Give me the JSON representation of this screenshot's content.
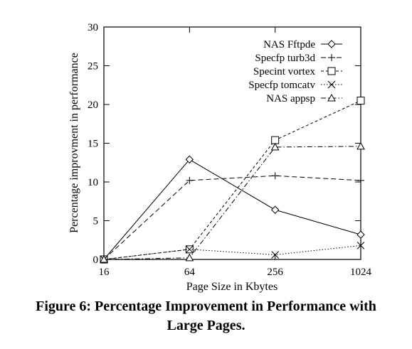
{
  "chart_data": {
    "type": "line",
    "title": "",
    "xlabel": "Page Size in Kbytes",
    "ylabel": "Percentage improvment in performance",
    "categories": [
      "16",
      "64",
      "256",
      "1024"
    ],
    "ylim": [
      0,
      30
    ],
    "yticks": [
      0,
      5,
      10,
      15,
      20,
      25,
      30
    ],
    "grid": false,
    "legend_position": "top-right",
    "series": [
      {
        "name": "NAS Fftpde",
        "marker": "diamond",
        "dash": "solid",
        "values": [
          0,
          12.9,
          6.4,
          3.2
        ]
      },
      {
        "name": "Specfp turb3d",
        "marker": "plus",
        "dash": "dashed",
        "values": [
          0,
          10.2,
          10.8,
          10.2
        ]
      },
      {
        "name": "Specint vortex",
        "marker": "square",
        "dash": "fine-dashed",
        "values": [
          0,
          1.3,
          15.4,
          20.5
        ]
      },
      {
        "name": "Specfp tomcatv",
        "marker": "cross",
        "dash": "dotted",
        "values": [
          0,
          1.3,
          0.6,
          1.8
        ]
      },
      {
        "name": "NAS appsp",
        "marker": "triangle",
        "dash": "dash-dot",
        "values": [
          0,
          0.2,
          14.5,
          14.6
        ]
      }
    ]
  },
  "caption": {
    "line1": "Figure 6: Percentage Improvement in Performance with",
    "line2": "Large Pages."
  }
}
